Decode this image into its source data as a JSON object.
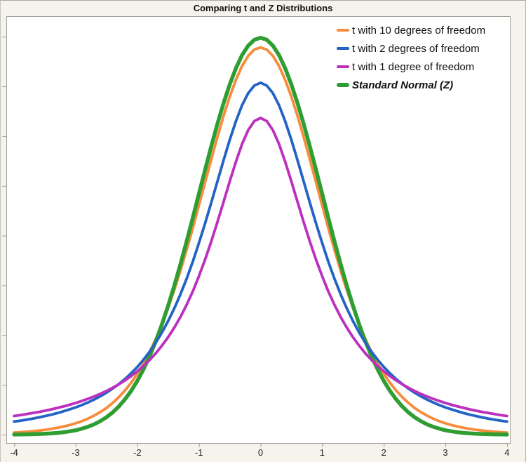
{
  "window": {
    "title": "Comparing t and Z Distributions"
  },
  "legend": {
    "position": "top-right",
    "items": [
      {
        "label": "t with 10 degrees of freedom",
        "emphasis": false
      },
      {
        "label": "t with 2 degrees of freedom",
        "emphasis": false
      },
      {
        "label": "t with 1 degree of freedom",
        "emphasis": false
      },
      {
        "label": "Standard Normal (Z)",
        "emphasis": true
      }
    ]
  },
  "axes": {
    "x_tick_labels": [
      "-4",
      "-3",
      "-2",
      "-1",
      "0",
      "1",
      "2",
      "3",
      "4"
    ]
  },
  "colors": {
    "background": "#F5F3EC",
    "plot_background": "#FFFFFF",
    "border": "#A2A19A",
    "tick": "#9B9A93",
    "text": "#111111"
  },
  "chart_data": {
    "type": "line",
    "title": "Comparing t and Z Distributions",
    "xlabel": "",
    "ylabel": "",
    "xlim": [
      -4,
      4
    ],
    "ylim": [
      0,
      0.42
    ],
    "grid": false,
    "legend_position": "top-right",
    "x_ticks": [
      -4,
      -3,
      -2,
      -1,
      0,
      1,
      2,
      3,
      4
    ],
    "y_ticks": [
      0,
      0.05,
      0.1,
      0.15,
      0.2,
      0.25,
      0.3,
      0.35,
      0.4
    ],
    "y_tick_labels_shown": false,
    "x": [
      -4,
      -3.9,
      -3.8,
      -3.7,
      -3.6,
      -3.5,
      -3.4,
      -3.3,
      -3.2,
      -3.1,
      -3,
      -2.9,
      -2.8,
      -2.7,
      -2.6,
      -2.5,
      -2.4,
      -2.3,
      -2.2,
      -2.1,
      -2,
      -1.9,
      -1.8,
      -1.7,
      -1.6,
      -1.5,
      -1.4,
      -1.3,
      -1.2,
      -1.1,
      -1,
      -0.9,
      -0.8,
      -0.7,
      -0.6,
      -0.5,
      -0.4,
      -0.3,
      -0.2,
      -0.1,
      0,
      0.1,
      0.2,
      0.3,
      0.4,
      0.5,
      0.6,
      0.7,
      0.8,
      0.9,
      1,
      1.1,
      1.2,
      1.3,
      1.4,
      1.5,
      1.6,
      1.7,
      1.8,
      1.9,
      2,
      2.1,
      2.2,
      2.3,
      2.4,
      2.5,
      2.6,
      2.7,
      2.8,
      2.9,
      3,
      3.1,
      3.2,
      3.3,
      3.4,
      3.5,
      3.6,
      3.7,
      3.8,
      3.9,
      4
    ],
    "series": [
      {
        "id": "t10",
        "name": "t with 10 degrees of freedom",
        "color": "#F68C3C",
        "line_width": 3.8,
        "z_index": 1,
        "values": [
          0.002,
          0.0024,
          0.0029,
          0.0034,
          0.004,
          0.0048,
          0.0057,
          0.0068,
          0.0081,
          0.0096,
          0.0114,
          0.0135,
          0.0161,
          0.0192,
          0.0227,
          0.0268,
          0.0319,
          0.0376,
          0.0444,
          0.0521,
          0.0611,
          0.0714,
          0.0831,
          0.0963,
          0.1111,
          0.1274,
          0.1454,
          0.1648,
          0.1857,
          0.2076,
          0.2304,
          0.2535,
          0.2766,
          0.2991,
          0.3203,
          0.3397,
          0.3566,
          0.3704,
          0.3807,
          0.387,
          0.3891,
          0.387,
          0.3807,
          0.3704,
          0.3566,
          0.3397,
          0.3203,
          0.2991,
          0.2766,
          0.2535,
          0.2304,
          0.2076,
          0.1857,
          0.1648,
          0.1454,
          0.1274,
          0.1111,
          0.0963,
          0.0831,
          0.0714,
          0.0611,
          0.0521,
          0.0444,
          0.0376,
          0.0319,
          0.0268,
          0.0227,
          0.0192,
          0.0161,
          0.0135,
          0.0114,
          0.0096,
          0.0081,
          0.0068,
          0.0057,
          0.0048,
          0.004,
          0.0034,
          0.0029,
          0.0024,
          0.002
        ]
      },
      {
        "id": "t2",
        "name": "t with 2 degrees of freedom",
        "color": "#2363C5",
        "line_width": 3.8,
        "z_index": 3,
        "values": [
          0.0131,
          0.014,
          0.015,
          0.0161,
          0.0173,
          0.0186,
          0.02,
          0.0216,
          0.0234,
          0.0253,
          0.0274,
          0.0297,
          0.0324,
          0.0353,
          0.0386,
          0.0422,
          0.0463,
          0.0508,
          0.0559,
          0.0616,
          0.068,
          0.0753,
          0.0834,
          0.0925,
          0.1027,
          0.1141,
          0.1269,
          0.1411,
          0.1567,
          0.1739,
          0.1925,
          0.2123,
          0.2331,
          0.2545,
          0.2758,
          0.2963,
          0.315,
          0.331,
          0.3432,
          0.3509,
          0.3536,
          0.3509,
          0.3432,
          0.331,
          0.315,
          0.2963,
          0.2758,
          0.2545,
          0.2331,
          0.2123,
          0.1925,
          0.1739,
          0.1567,
          0.1411,
          0.1269,
          0.1141,
          0.1027,
          0.0925,
          0.0834,
          0.0753,
          0.068,
          0.0616,
          0.0559,
          0.0508,
          0.0463,
          0.0422,
          0.0386,
          0.0353,
          0.0324,
          0.0297,
          0.0274,
          0.0253,
          0.0234,
          0.0216,
          0.02,
          0.0186,
          0.0173,
          0.0161,
          0.015,
          0.014,
          0.0131
        ]
      },
      {
        "id": "t1",
        "name": "t with 1 degree of freedom",
        "color": "#BB30BE",
        "line_width": 3.8,
        "z_index": 4,
        "values": [
          0.0187,
          0.0196,
          0.0206,
          0.0217,
          0.0228,
          0.024,
          0.0253,
          0.0268,
          0.0283,
          0.03,
          0.0318,
          0.0338,
          0.036,
          0.0384,
          0.041,
          0.0439,
          0.0471,
          0.0506,
          0.0545,
          0.0588,
          0.0637,
          0.069,
          0.0751,
          0.0818,
          0.0894,
          0.0979,
          0.1075,
          0.1183,
          0.1305,
          0.144,
          0.1592,
          0.1759,
          0.1941,
          0.2136,
          0.234,
          0.2546,
          0.2744,
          0.292,
          0.3061,
          0.3152,
          0.3183,
          0.3152,
          0.3061,
          0.292,
          0.2744,
          0.2546,
          0.234,
          0.2136,
          0.1941,
          0.1759,
          0.1592,
          0.144,
          0.1305,
          0.1183,
          0.1075,
          0.0979,
          0.0894,
          0.0818,
          0.0751,
          0.069,
          0.0637,
          0.0588,
          0.0545,
          0.0506,
          0.0471,
          0.0439,
          0.041,
          0.0384,
          0.036,
          0.0338,
          0.0318,
          0.03,
          0.0283,
          0.0268,
          0.0253,
          0.024,
          0.0228,
          0.0217,
          0.0206,
          0.0196,
          0.0187
        ]
      },
      {
        "id": "z",
        "name": "Standard Normal (Z)",
        "color": "#2F9E32",
        "line_width": 5.5,
        "z_index": 2,
        "values": [
          0.0001,
          0.0002,
          0.0003,
          0.0004,
          0.0006,
          0.0009,
          0.0012,
          0.0017,
          0.0024,
          0.0033,
          0.0044,
          0.006,
          0.0079,
          0.0104,
          0.0136,
          0.0175,
          0.0224,
          0.0283,
          0.0355,
          0.044,
          0.054,
          0.0656,
          0.079,
          0.094,
          0.1109,
          0.1295,
          0.1497,
          0.1714,
          0.1942,
          0.2179,
          0.242,
          0.2661,
          0.2897,
          0.3123,
          0.3332,
          0.3521,
          0.3683,
          0.3814,
          0.391,
          0.3969,
          0.3989,
          0.3969,
          0.391,
          0.3814,
          0.3683,
          0.3521,
          0.3332,
          0.3123,
          0.2897,
          0.2661,
          0.242,
          0.2179,
          0.1942,
          0.1714,
          0.1497,
          0.1295,
          0.1109,
          0.094,
          0.079,
          0.0656,
          0.054,
          0.044,
          0.0355,
          0.0283,
          0.0224,
          0.0175,
          0.0136,
          0.0104,
          0.0079,
          0.006,
          0.0044,
          0.0033,
          0.0024,
          0.0017,
          0.0012,
          0.0009,
          0.0006,
          0.0004,
          0.0003,
          0.0002,
          0.0001
        ]
      }
    ]
  }
}
